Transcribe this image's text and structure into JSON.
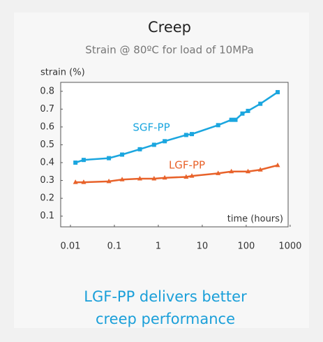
{
  "chart_data": {
    "type": "line",
    "title": "Creep",
    "subtitle": "Strain @ 80ºC for load of 10MPa",
    "ylabel": "strain (%)",
    "xlabel": "time (hours)",
    "footer": [
      "LGF-PP delivers better",
      "creep performance"
    ],
    "log_x": true,
    "xlim": [
      0.006,
      900
    ],
    "xticks": [
      0.01,
      0.1,
      1,
      10,
      100,
      1000
    ],
    "ylim": [
      0.04,
      0.85
    ],
    "yticks": [
      0.1,
      0.2,
      0.3,
      0.4,
      0.5,
      0.6,
      0.7,
      0.8
    ],
    "series": [
      {
        "name": "SGF-PP",
        "color": "#1ba6df",
        "marker": "square",
        "x": [
          0.013,
          0.02,
          0.075,
          0.15,
          0.38,
          0.8,
          1.4,
          4.3,
          5.8,
          23,
          46,
          57,
          82,
          110,
          210,
          520
        ],
        "values": [
          0.4,
          0.415,
          0.425,
          0.445,
          0.475,
          0.5,
          0.52,
          0.555,
          0.56,
          0.61,
          0.64,
          0.64,
          0.675,
          0.69,
          0.73,
          0.795
        ]
      },
      {
        "name": "LGF-PP",
        "color": "#e8622a",
        "marker": "triangle",
        "x": [
          0.013,
          0.02,
          0.075,
          0.15,
          0.38,
          0.8,
          1.4,
          4.3,
          5.8,
          23,
          46,
          110,
          210,
          520
        ],
        "values": [
          0.29,
          0.29,
          0.295,
          0.305,
          0.31,
          0.31,
          0.315,
          0.32,
          0.325,
          0.34,
          0.35,
          0.35,
          0.36,
          0.385
        ]
      }
    ]
  }
}
